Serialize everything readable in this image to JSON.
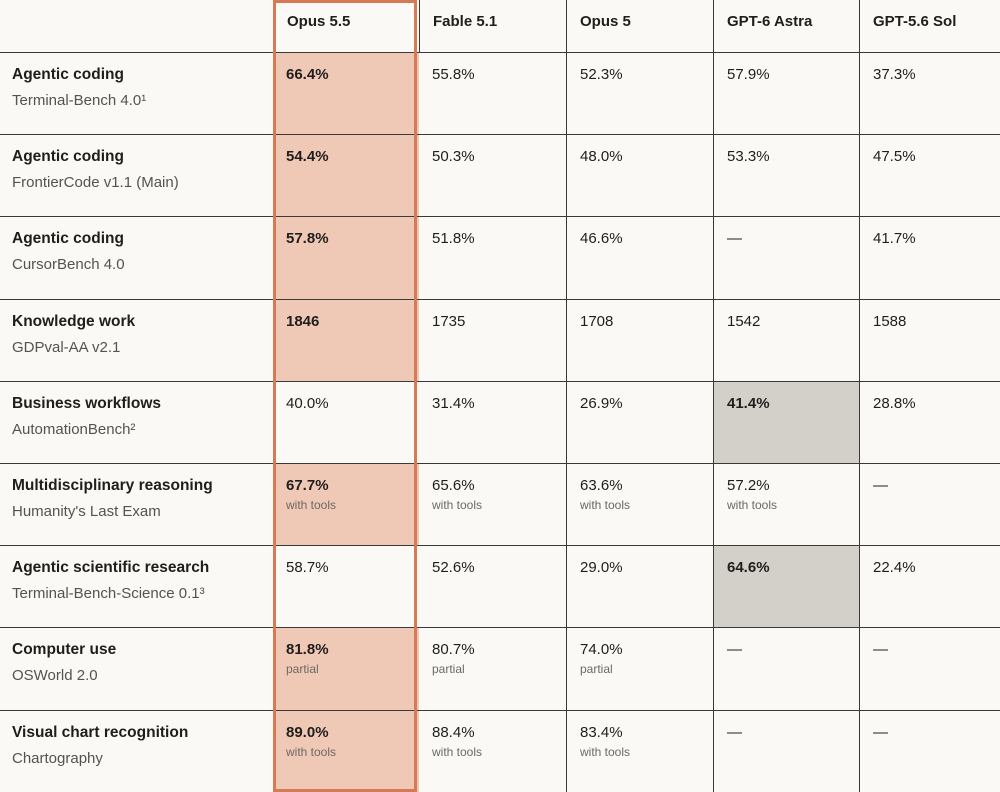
{
  "chart_data": {
    "type": "table",
    "columns": [
      "Opus 5.5",
      "Fable 5.1",
      "Opus 5",
      "GPT-6 Astra",
      "GPT-5.6 Sol"
    ],
    "rows": [
      {
        "task": "Agentic coding",
        "benchmark": "Terminal-Bench 4.0¹",
        "values": [
          "66.4%",
          "55.8%",
          "52.3%",
          "57.9%",
          "37.3%"
        ],
        "notes": [
          "",
          "",
          "",
          "",
          ""
        ],
        "best": 0,
        "highlight": "orange"
      },
      {
        "task": "Agentic coding",
        "benchmark": "FrontierCode v1.1 (Main)",
        "values": [
          "54.4%",
          "50.3%",
          "48.0%",
          "53.3%",
          "47.5%"
        ],
        "notes": [
          "",
          "",
          "",
          "",
          ""
        ],
        "best": 0,
        "highlight": "orange"
      },
      {
        "task": "Agentic coding",
        "benchmark": "CursorBench 4.0",
        "values": [
          "57.8%",
          "51.8%",
          "46.6%",
          "—",
          "41.7%"
        ],
        "notes": [
          "",
          "",
          "",
          "",
          ""
        ],
        "best": 0,
        "highlight": "orange"
      },
      {
        "task": "Knowledge work",
        "benchmark": "GDPval-AA v2.1",
        "values": [
          "1846",
          "1735",
          "1708",
          "1542",
          "1588"
        ],
        "notes": [
          "",
          "",
          "",
          "",
          ""
        ],
        "best": 0,
        "highlight": "orange"
      },
      {
        "task": "Business workflows",
        "benchmark": "AutomationBench²",
        "values": [
          "40.0%",
          "31.4%",
          "26.9%",
          "41.4%",
          "28.8%"
        ],
        "notes": [
          "",
          "",
          "",
          "",
          ""
        ],
        "best": 3,
        "highlight": "gray"
      },
      {
        "task": "Multidisciplinary reasoning",
        "benchmark": "Humanity's Last Exam",
        "values": [
          "67.7%",
          "65.6%",
          "63.6%",
          "57.2%",
          "—"
        ],
        "notes": [
          "with tools",
          "with tools",
          "with tools",
          "with tools",
          ""
        ],
        "best": 0,
        "highlight": "orange"
      },
      {
        "task": "Agentic scientific research",
        "benchmark": "Terminal-Bench-Science 0.1³",
        "values": [
          "58.7%",
          "52.6%",
          "29.0%",
          "64.6%",
          "22.4%"
        ],
        "notes": [
          "",
          "",
          "",
          "",
          ""
        ],
        "best": 3,
        "highlight": "gray"
      },
      {
        "task": "Computer use",
        "benchmark": "OSWorld 2.0",
        "values": [
          "81.8%",
          "80.7%",
          "74.0%",
          "—",
          "—"
        ],
        "notes": [
          "partial",
          "partial",
          "partial",
          "",
          ""
        ],
        "best": 0,
        "highlight": "orange"
      },
      {
        "task": "Visual chart recognition",
        "benchmark": "Chartography",
        "values": [
          "89.0%",
          "88.4%",
          "83.4%",
          "—",
          "—"
        ],
        "notes": [
          "with tools",
          "with tools",
          "with tools",
          "",
          ""
        ],
        "best": 0,
        "highlight": "orange"
      }
    ],
    "highlight_colors": {
      "orange": "#f0c9b6",
      "gray": "#d2d0c8",
      "frame": "#d67a56"
    }
  }
}
